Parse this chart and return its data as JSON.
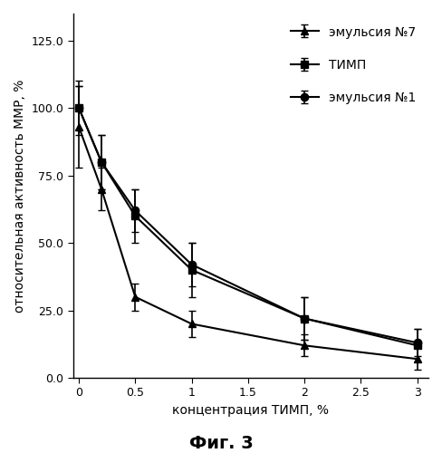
{
  "title": "",
  "xlabel": "концентрация ТИМП, %",
  "ylabel": "относительная активность ММР, %",
  "fig_label": "Фиг. 3",
  "xlim": [
    -0.05,
    3.1
  ],
  "ylim": [
    0.0,
    135.0
  ],
  "yticks": [
    0.0,
    25.0,
    50.0,
    75.0,
    100.0,
    125.0
  ],
  "xticks": [
    0,
    0.5,
    1.0,
    1.5,
    2.0,
    2.5,
    3.0
  ],
  "xtick_labels": [
    "0",
    "0.5",
    "1",
    "1.5",
    "2",
    "2.5",
    "3"
  ],
  "series": [
    {
      "label": "эмульсия №7",
      "x": [
        0,
        0.2,
        0.5,
        1.0,
        2.0,
        3.0
      ],
      "y": [
        93,
        70,
        30,
        20,
        12,
        7
      ],
      "yerr": [
        15,
        8,
        5,
        5,
        4,
        4
      ],
      "marker": "^",
      "color": "#000000",
      "linestyle": "-"
    },
    {
      "label": "ТИМП",
      "x": [
        0,
        0.2,
        0.5,
        1.0,
        2.0,
        3.0
      ],
      "y": [
        100,
        80,
        60,
        40,
        22,
        12
      ],
      "yerr": [
        10,
        10,
        10,
        10,
        8,
        6
      ],
      "marker": "s",
      "color": "#000000",
      "linestyle": "-"
    },
    {
      "label": "эмульсия №1",
      "x": [
        0,
        0.2,
        0.5,
        1.0,
        2.0,
        3.0
      ],
      "y": [
        100,
        80,
        62,
        42,
        22,
        13
      ],
      "yerr": [
        8,
        10,
        8,
        8,
        8,
        5
      ],
      "marker": "o",
      "color": "#000000",
      "linestyle": "-"
    }
  ],
  "background_color": "#ffffff"
}
